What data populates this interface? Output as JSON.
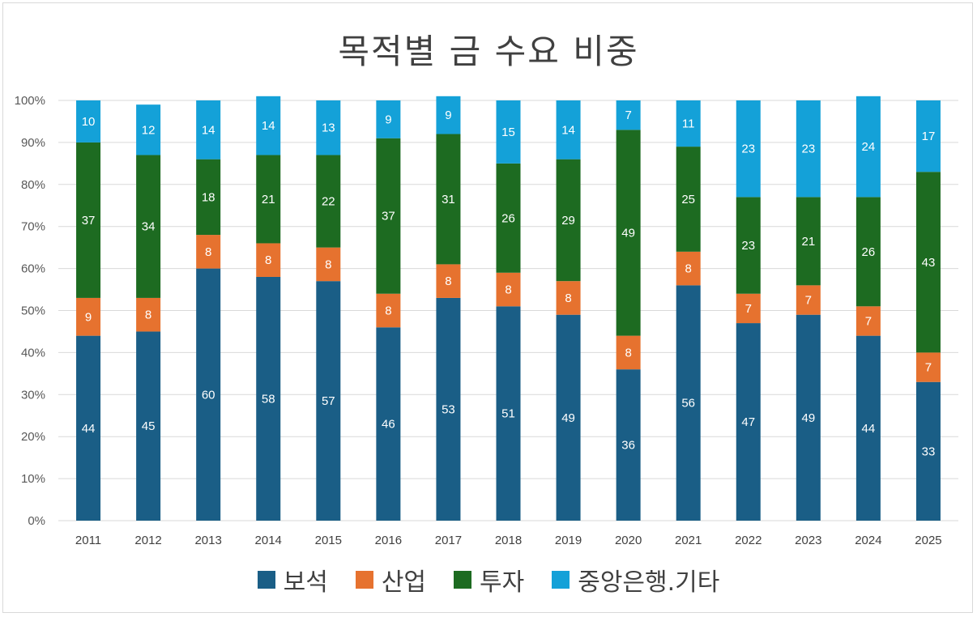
{
  "chart_data": {
    "type": "bar",
    "stacked": true,
    "percent": true,
    "title": "목적별 금 수요 비중",
    "categories": [
      "2011",
      "2012",
      "2013",
      "2014",
      "2015",
      "2016",
      "2017",
      "2018",
      "2019",
      "2020",
      "2021",
      "2022",
      "2023",
      "2024",
      "2025"
    ],
    "series": [
      {
        "name": "보석",
        "color": "#1a5e86",
        "values": [
          44,
          45,
          60,
          58,
          57,
          46,
          53,
          51,
          49,
          36,
          56,
          47,
          49,
          44,
          33
        ]
      },
      {
        "name": "산업",
        "color": "#e6722f",
        "values": [
          9,
          8,
          8,
          8,
          8,
          8,
          8,
          8,
          8,
          8,
          8,
          7,
          7,
          7,
          7
        ]
      },
      {
        "name": "투자",
        "color": "#1d6b21",
        "values": [
          37,
          34,
          18,
          21,
          22,
          37,
          31,
          26,
          29,
          49,
          25,
          23,
          21,
          26,
          43
        ]
      },
      {
        "name": "중앙은행.기타",
        "color": "#14a1d8",
        "values": [
          10,
          12,
          14,
          14,
          13,
          9,
          9,
          15,
          14,
          7,
          11,
          23,
          23,
          24,
          17
        ]
      }
    ],
    "yticks": [
      "0%",
      "10%",
      "20%",
      "30%",
      "40%",
      "50%",
      "60%",
      "70%",
      "80%",
      "90%",
      "100%"
    ],
    "ylim": [
      0,
      100
    ],
    "grid": true,
    "legend": "bottom"
  }
}
